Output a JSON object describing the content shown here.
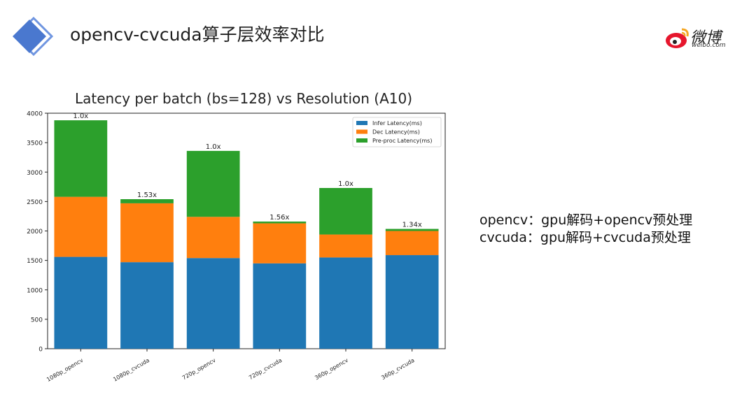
{
  "slide": {
    "title": "opencv-cvcuda算子层效率对比",
    "brand_name": "微博",
    "brand_url": "weibo.com",
    "notes": [
      "opencv：gpu解码+opencv预处理",
      "cvcuda：gpu解码+cvcuda预处理"
    ],
    "accent_color": "#4a78cf"
  },
  "chart_data": {
    "type": "bar",
    "stacked": true,
    "title": "Latency per batch (bs=128) vs Resolution (A10)",
    "xlabel": "",
    "ylabel": "",
    "categories": [
      "1080p_opencv",
      "1080p_cvcuda",
      "720p_opencv",
      "720p_cvcuda",
      "360p_opencv",
      "360p_cvcuda"
    ],
    "series": [
      {
        "name": "Infer Latency(ms)",
        "color": "#1f77b4",
        "values": [
          1560,
          1470,
          1540,
          1450,
          1550,
          1590
        ]
      },
      {
        "name": "Dec Latency(ms)",
        "color": "#ff7f0e",
        "values": [
          1020,
          1000,
          700,
          680,
          390,
          410
        ]
      },
      {
        "name": "Pre-proc Latency(ms)",
        "color": "#2ca02c",
        "values": [
          1300,
          70,
          1120,
          30,
          790,
          35
        ]
      }
    ],
    "bar_labels": [
      "1.0x",
      "1.53x",
      "1.0x",
      "1.56x",
      "1.0x",
      "1.34x"
    ],
    "ylim": [
      0,
      4000
    ],
    "yticks": [
      0,
      500,
      1000,
      1500,
      2000,
      2500,
      3000,
      3500,
      4000
    ],
    "grid": false,
    "legend_position": "top-right"
  }
}
